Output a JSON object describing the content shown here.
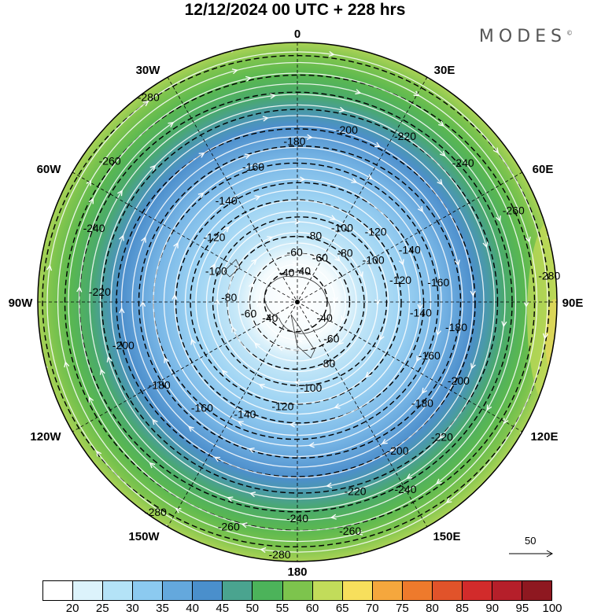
{
  "title": "12/12/2024  00 UTC  + 228 hrs",
  "brand": "MODES",
  "brand_mark": "©",
  "longitude_labels": {
    "top": "0",
    "bottom": "180",
    "left": "90W",
    "right": "90E",
    "upper_left_1": "30W",
    "upper_left_2": "60W",
    "upper_right_1": "30E",
    "upper_right_2": "60E",
    "lower_left_1": "120W",
    "lower_left_2": "150W",
    "lower_right_1": "120E",
    "lower_right_2": "150E"
  },
  "colorbar": {
    "colors": [
      "#ffffff",
      "#dcf3fb",
      "#b4e3f7",
      "#8ccaf0",
      "#64a8dd",
      "#4a8fcc",
      "#4aa48f",
      "#4cb35a",
      "#7dc44d",
      "#c2dc5a",
      "#f7df5c",
      "#f5a73d",
      "#ee7a2c",
      "#e1532a",
      "#d22b2b",
      "#b51f2a",
      "#8e1820"
    ],
    "labels": [
      "20",
      "25",
      "30",
      "35",
      "40",
      "45",
      "50",
      "55",
      "60",
      "65",
      "70",
      "75",
      "80",
      "85",
      "90",
      "95",
      "100"
    ]
  },
  "reference_vector": {
    "label": "50"
  },
  "contours": [
    {
      "label": "-40"
    },
    {
      "label": "-60"
    },
    {
      "label": "-80"
    },
    {
      "label": "-100"
    },
    {
      "label": "-120"
    },
    {
      "label": "-140"
    },
    {
      "label": "-160"
    },
    {
      "label": "-180"
    },
    {
      "label": "-200"
    },
    {
      "label": "-220"
    },
    {
      "label": "-240"
    },
    {
      "label": "-260"
    },
    {
      "label": "-280"
    }
  ]
}
